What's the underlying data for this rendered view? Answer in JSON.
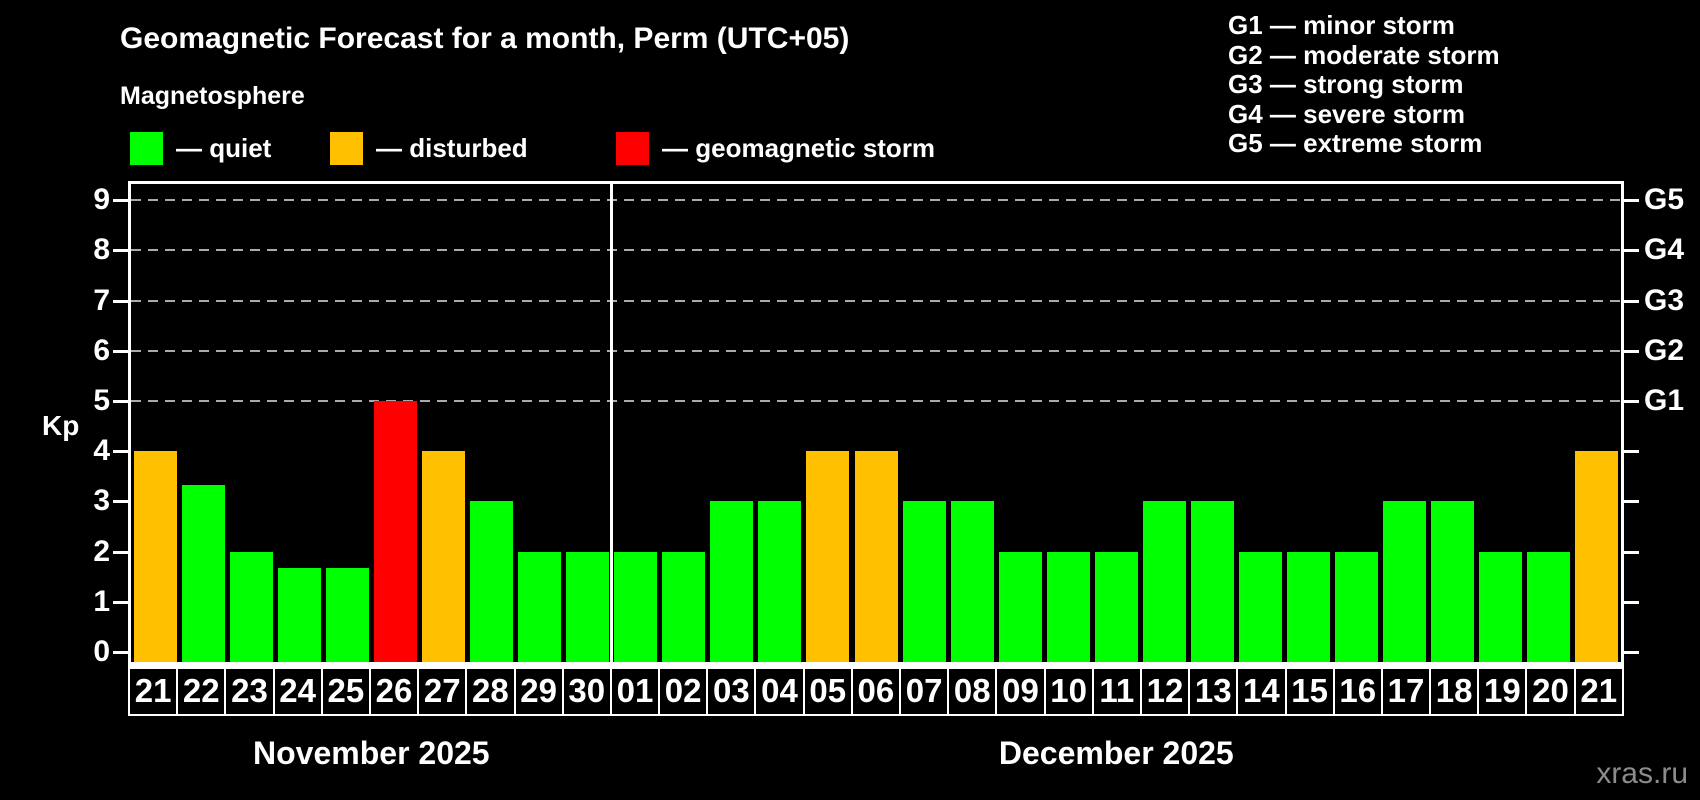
{
  "title": "Geomagnetic Forecast for a month, Perm (UTC+05)",
  "subtitle": "Magnetosphere",
  "status_legend": [
    {
      "key": "quiet",
      "label": "— quiet",
      "color": "#00ff00"
    },
    {
      "key": "disturbed",
      "label": "— disturbed",
      "color": "#ffc000"
    },
    {
      "key": "storm",
      "label": "— geomagnetic storm",
      "color": "#ff0000"
    }
  ],
  "g_scale_legend": [
    "G1 — minor storm",
    "G2 — moderate storm",
    "G3 — strong storm",
    "G4 — severe storm",
    "G5 — extreme storm"
  ],
  "watermark": "xras.ru",
  "colors": {
    "background": "#000000",
    "axis": "#ffffff",
    "grid": "#aaaaaa",
    "text": "#ffffff",
    "watermark": "#8c8c8c"
  },
  "chart_data": {
    "type": "bar",
    "title": "Geomagnetic Forecast for a month, Perm (UTC+05)",
    "xlabel": "",
    "ylabel": "Kp",
    "ylim": [
      -0.2,
      9.4
    ],
    "y_ticks": [
      0,
      1,
      2,
      3,
      4,
      5,
      6,
      7,
      8,
      9
    ],
    "grid": "dashed horizontal lines at Kp 5-9 only",
    "gridline_levels": [
      5,
      6,
      7,
      8,
      9
    ],
    "legend_position": "top-left",
    "right_axis_labels": [
      {
        "level": 5,
        "text": "G1"
      },
      {
        "level": 6,
        "text": "G2"
      },
      {
        "level": 7,
        "text": "G3"
      },
      {
        "level": 8,
        "text": "G4"
      },
      {
        "level": 9,
        "text": "G5"
      }
    ],
    "months": [
      {
        "label": "November 2025",
        "days": [
          "21",
          "22",
          "23",
          "24",
          "25",
          "26",
          "27",
          "28",
          "29",
          "30"
        ],
        "values": [
          4,
          3.33,
          2,
          1.67,
          1.67,
          5,
          4,
          3,
          2,
          2
        ],
        "statuses": [
          "disturbed",
          "quiet",
          "quiet",
          "quiet",
          "quiet",
          "storm",
          "disturbed",
          "quiet",
          "quiet",
          "quiet"
        ]
      },
      {
        "label": "December 2025",
        "days": [
          "01",
          "02",
          "03",
          "04",
          "05",
          "06",
          "07",
          "08",
          "09",
          "10",
          "11",
          "12",
          "13",
          "14",
          "15",
          "16",
          "17",
          "18",
          "19",
          "20",
          "21"
        ],
        "values": [
          2,
          2,
          3,
          3,
          4,
          4,
          3,
          3,
          2,
          2,
          2,
          3,
          3,
          2,
          2,
          2,
          3,
          3,
          2,
          2,
          4
        ],
        "statuses": [
          "quiet",
          "quiet",
          "quiet",
          "quiet",
          "disturbed",
          "disturbed",
          "quiet",
          "quiet",
          "quiet",
          "quiet",
          "quiet",
          "quiet",
          "quiet",
          "quiet",
          "quiet",
          "quiet",
          "quiet",
          "quiet",
          "quiet",
          "quiet",
          "disturbed"
        ]
      }
    ]
  }
}
